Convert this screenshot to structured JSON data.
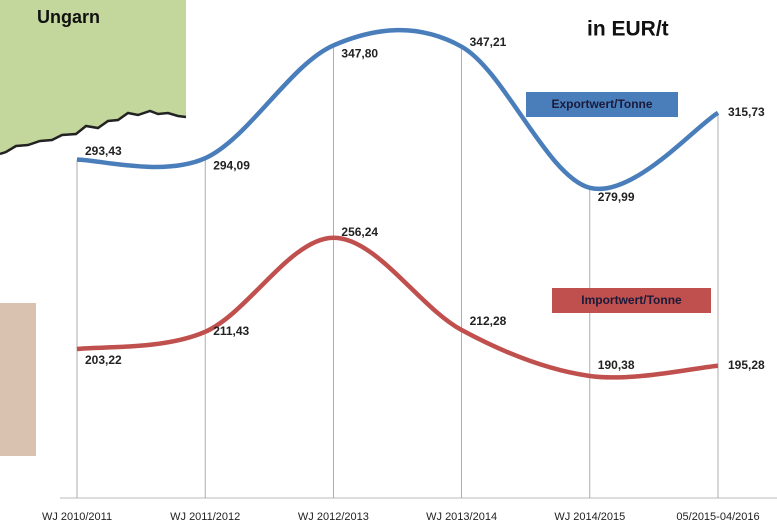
{
  "chart_data": {
    "type": "line",
    "title": "Ungarn",
    "subtitle": "in EUR/t",
    "categories": [
      "WJ 2010/2011",
      "WJ 2011/2012",
      "WJ 2012/2013",
      "WJ 2013/2014",
      "WJ 2014/2015",
      "05/2015-04/2016"
    ],
    "series": [
      {
        "name": "Exportwert/Tonne",
        "color": "#4a7ebb",
        "values": [
          293.43,
          294.09,
          347.8,
          347.21,
          279.99,
          315.73
        ],
        "value_labels": [
          "293,43",
          "294,09",
          "347,80",
          "347,21",
          "279,99",
          "315,73"
        ]
      },
      {
        "name": "Importwert/Tonne",
        "color": "#c0504d",
        "values": [
          203.22,
          211.43,
          256.24,
          212.28,
          190.38,
          195.28
        ],
        "value_labels": [
          "203,22",
          "211,43",
          "256,24",
          "212,28",
          "190,38",
          "195,28"
        ]
      }
    ]
  }
}
